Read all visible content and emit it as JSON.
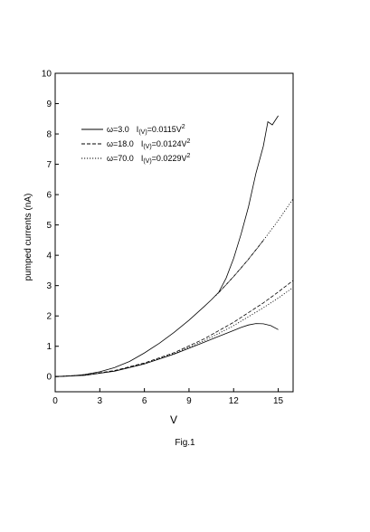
{
  "chart_data": {
    "type": "line",
    "xlabel": "V",
    "ylabel": "pumped currents  (nA)",
    "xlim": [
      0,
      16
    ],
    "ylim": [
      -0.5,
      10
    ],
    "x_ticks": [
      "0",
      "3",
      "6",
      "9",
      "12",
      "15"
    ],
    "y_ticks": [
      "0",
      "1",
      "2",
      "3",
      "4",
      "5",
      "6",
      "7",
      "8",
      "9",
      "10"
    ],
    "grid": false,
    "legend_position": "top-left",
    "legend": [
      {
        "style": "solid",
        "omega": "ω=3.0",
        "fit_prefix": "I",
        "fit_sub": "(V)",
        "fit_rhs": "=0.0115V",
        "fit_sup": "2"
      },
      {
        "style": "dashed",
        "omega": "ω=18.0",
        "fit_prefix": "I",
        "fit_sub": "(V)",
        "fit_rhs": "=0.0124V",
        "fit_sup": "2"
      },
      {
        "style": "dotted",
        "omega": "ω=70.0",
        "fit_prefix": "I",
        "fit_sub": "(V)",
        "fit_rhs": "=0.0229V",
        "fit_sup": "2"
      }
    ],
    "series": [
      {
        "style": "solid",
        "points": [
          [
            0,
            0
          ],
          [
            1,
            0.02
          ],
          [
            2,
            0.07
          ],
          [
            3,
            0.16
          ],
          [
            4,
            0.3
          ],
          [
            5,
            0.5
          ],
          [
            6,
            0.78
          ],
          [
            7,
            1.1
          ],
          [
            8,
            1.46
          ],
          [
            9,
            1.86
          ],
          [
            10,
            2.3
          ],
          [
            10.5,
            2.53
          ],
          [
            11,
            2.78
          ],
          [
            11.5,
            3.25
          ],
          [
            12,
            3.9
          ],
          [
            12.5,
            4.7
          ],
          [
            13,
            5.6
          ],
          [
            13.5,
            6.7
          ],
          [
            14,
            7.6
          ],
          [
            14.3,
            8.4
          ],
          [
            14.6,
            8.3
          ],
          [
            15,
            8.6
          ]
        ]
      },
      {
        "style": "solid",
        "points": [
          [
            0,
            0
          ],
          [
            2,
            0.04
          ],
          [
            4,
            0.18
          ],
          [
            6,
            0.42
          ],
          [
            8,
            0.74
          ],
          [
            10,
            1.13
          ],
          [
            11,
            1.33
          ],
          [
            12,
            1.52
          ],
          [
            12.5,
            1.62
          ],
          [
            13,
            1.7
          ],
          [
            13.5,
            1.75
          ],
          [
            14,
            1.74
          ],
          [
            14.5,
            1.68
          ],
          [
            15,
            1.55
          ]
        ]
      },
      {
        "style": "dashed",
        "points": [
          [
            0,
            0
          ],
          [
            2,
            0.05
          ],
          [
            4,
            0.2
          ],
          [
            6,
            0.45
          ],
          [
            8,
            0.79
          ],
          [
            10,
            1.24
          ],
          [
            12,
            1.79
          ],
          [
            14,
            2.43
          ],
          [
            15,
            2.79
          ],
          [
            16,
            3.17
          ]
        ]
      },
      {
        "style": "dotted",
        "points": [
          [
            0,
            0
          ],
          [
            2,
            0.05
          ],
          [
            4,
            0.19
          ],
          [
            6,
            0.43
          ],
          [
            8,
            0.76
          ],
          [
            10,
            1.18
          ],
          [
            11,
            1.42
          ],
          [
            12,
            1.68
          ],
          [
            14,
            2.27
          ],
          [
            15,
            2.59
          ],
          [
            16,
            2.94
          ]
        ]
      },
      {
        "style": "dotted",
        "points": [
          [
            10.8,
            2.67
          ],
          [
            11,
            2.77
          ],
          [
            12,
            3.3
          ],
          [
            13,
            3.87
          ],
          [
            14,
            4.49
          ],
          [
            15,
            5.15
          ],
          [
            16,
            5.86
          ]
        ]
      },
      {
        "style": "dashed",
        "points": [
          [
            11,
            2.77
          ],
          [
            12,
            3.3
          ],
          [
            13,
            3.87
          ],
          [
            14,
            4.49
          ]
        ]
      }
    ]
  },
  "caption": "Fig.1"
}
